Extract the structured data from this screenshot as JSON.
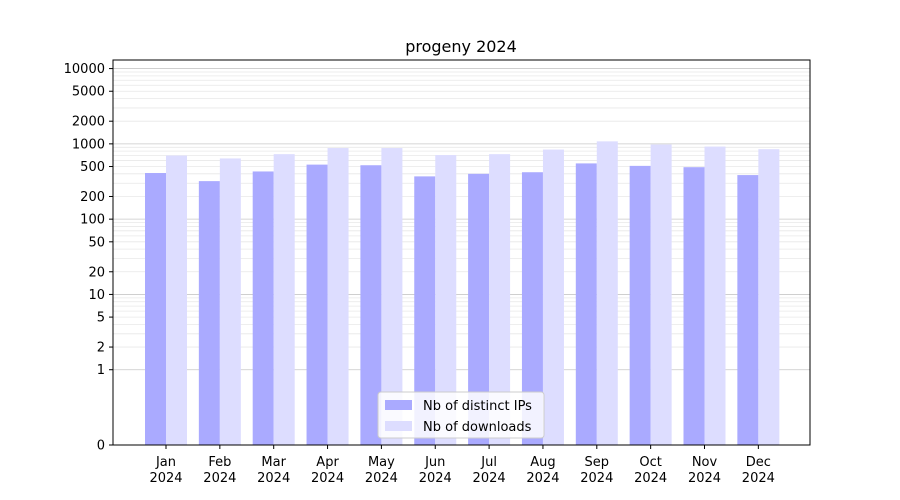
{
  "chart_data": {
    "type": "bar",
    "title": "progeny 2024",
    "xlabel": "",
    "ylabel": "",
    "yscale": "symlog",
    "ylim": [
      0,
      13000
    ],
    "y_ticks": [
      0,
      1,
      2,
      5,
      10,
      20,
      50,
      100,
      200,
      500,
      1000,
      2000,
      5000,
      10000
    ],
    "y_tick_labels": [
      "0",
      "1",
      "2",
      "5",
      "10",
      "20",
      "50",
      "100",
      "200",
      "500",
      "1000",
      "2000",
      "5000",
      "10000"
    ],
    "grid": true,
    "legend_position": "bottom-center",
    "categories": [
      [
        "Jan",
        "2024"
      ],
      [
        "Feb",
        "2024"
      ],
      [
        "Mar",
        "2024"
      ],
      [
        "Apr",
        "2024"
      ],
      [
        "May",
        "2024"
      ],
      [
        "Jun",
        "2024"
      ],
      [
        "Jul",
        "2024"
      ],
      [
        "Aug",
        "2024"
      ],
      [
        "Sep",
        "2024"
      ],
      [
        "Oct",
        "2024"
      ],
      [
        "Nov",
        "2024"
      ],
      [
        "Dec",
        "2024"
      ]
    ],
    "series": [
      {
        "name": "Nb of distinct IPs",
        "color": "#aaaaff",
        "values": [
          410,
          320,
          430,
          530,
          520,
          370,
          400,
          420,
          550,
          510,
          490,
          385
        ]
      },
      {
        "name": "Nb of downloads",
        "color": "#ddddff",
        "values": [
          700,
          640,
          730,
          880,
          880,
          710,
          730,
          840,
          1080,
          980,
          920,
          850
        ]
      }
    ]
  }
}
